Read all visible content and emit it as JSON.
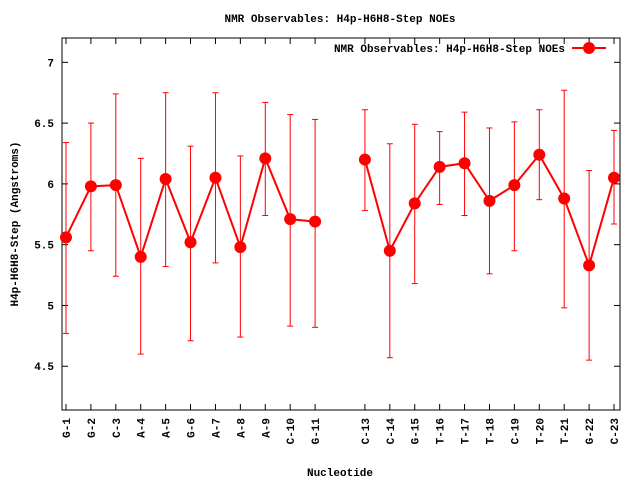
{
  "chart_data": {
    "type": "line",
    "title": "NMR Observables: H4p-H6H8-Step NOEs",
    "xlabel": "Nucleotide",
    "ylabel": "H4p-H6H8-Step (Angstroms)",
    "ylim": [
      4.14,
      7.2
    ],
    "xlim": [
      0.84,
      23.24
    ],
    "yticks": [
      4.5,
      5,
      5.5,
      6,
      6.5,
      7
    ],
    "ytick_labels": [
      "4.5",
      "5",
      "5.5",
      "6",
      "6.5",
      "7"
    ],
    "grid": false,
    "legend": {
      "placement": "top-right",
      "entries": [
        "NMR Observables: H4p-H6H8-Step NOEs"
      ]
    },
    "color": "#ff0000",
    "series": [
      {
        "name": "NMR Observables: H4p-H6H8-Step NOEs",
        "points": [
          {
            "x": 1,
            "label": "G-1",
            "y": 5.56,
            "ymax": 6.34,
            "ymin": 4.77
          },
          {
            "x": 2,
            "label": "G-2",
            "y": 5.98,
            "ymax": 6.5,
            "ymin": 5.45
          },
          {
            "x": 3,
            "label": "C-3",
            "y": 5.99,
            "ymax": 6.74,
            "ymin": 5.24
          },
          {
            "x": 4,
            "label": "A-4",
            "y": 5.4,
            "ymax": 6.21,
            "ymin": 4.6
          },
          {
            "x": 5,
            "label": "A-5",
            "y": 6.04,
            "ymax": 6.75,
            "ymin": 5.32
          },
          {
            "x": 6,
            "label": "G-6",
            "y": 5.52,
            "ymax": 6.31,
            "ymin": 4.71
          },
          {
            "x": 7,
            "label": "A-7",
            "y": 6.05,
            "ymax": 6.75,
            "ymin": 5.35
          },
          {
            "x": 8,
            "label": "A-8",
            "y": 5.48,
            "ymax": 6.23,
            "ymin": 4.74
          },
          {
            "x": 9,
            "label": "A-9",
            "y": 6.21,
            "ymax": 6.67,
            "ymin": 5.74
          },
          {
            "x": 10,
            "label": "C-10",
            "y": 5.71,
            "ymax": 6.57,
            "ymin": 4.83
          },
          {
            "x": 11,
            "label": "G-11",
            "y": 5.69,
            "ymax": 6.53,
            "ymin": 4.82
          },
          {
            "x": 13,
            "label": "C-13",
            "y": 6.2,
            "ymax": 6.61,
            "ymin": 5.78
          },
          {
            "x": 14,
            "label": "C-14",
            "y": 5.45,
            "ymax": 6.33,
            "ymin": 4.57
          },
          {
            "x": 15,
            "label": "G-15",
            "y": 5.84,
            "ymax": 6.49,
            "ymin": 5.18
          },
          {
            "x": 16,
            "label": "T-16",
            "y": 6.14,
            "ymax": 6.43,
            "ymin": 5.83
          },
          {
            "x": 17,
            "label": "T-17",
            "y": 6.17,
            "ymax": 6.59,
            "ymin": 5.74
          },
          {
            "x": 18,
            "label": "T-18",
            "y": 5.86,
            "ymax": 6.46,
            "ymin": 5.26
          },
          {
            "x": 19,
            "label": "C-19",
            "y": 5.99,
            "ymax": 6.51,
            "ymin": 5.45
          },
          {
            "x": 20,
            "label": "T-20",
            "y": 6.24,
            "ymax": 6.61,
            "ymin": 5.87
          },
          {
            "x": 21,
            "label": "T-21",
            "y": 5.88,
            "ymax": 6.77,
            "ymin": 4.98
          },
          {
            "x": 22,
            "label": "G-22",
            "y": 5.33,
            "ymax": 6.11,
            "ymin": 4.55
          },
          {
            "x": 23,
            "label": "C-23",
            "y": 6.05,
            "ymax": 6.44,
            "ymin": 5.67
          }
        ]
      }
    ]
  }
}
